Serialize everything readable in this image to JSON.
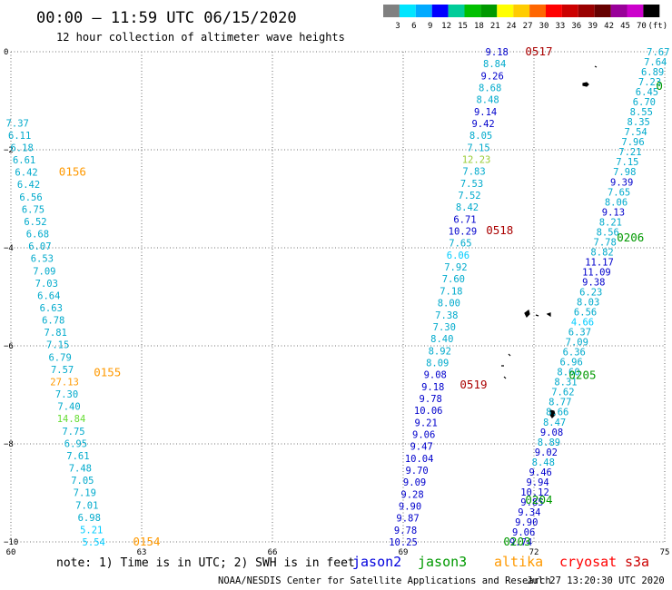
{
  "header": {
    "title": "00:00 – 11:59 UTC 06/15/2020",
    "subtitle": "12 hour collection of altimeter wave heights"
  },
  "colorbar": {
    "labels": [
      "3",
      "6",
      "9",
      "12",
      "15",
      "18",
      "21",
      "24",
      "27",
      "30",
      "33",
      "36",
      "39",
      "42",
      "45",
      "70",
      "(ft)"
    ],
    "colors": [
      "#808080",
      "#00e5ff",
      "#00aaff",
      "#0000ff",
      "#00cc99",
      "#00c000",
      "#009900",
      "#ffff00",
      "#ffcc00",
      "#ff6600",
      "#ff0000",
      "#cc0000",
      "#990000",
      "#660000",
      "#990099",
      "#cc00cc",
      "#000000"
    ]
  },
  "footer": {
    "note": "note: 1) Time is in UTC; 2) SWH is in feet",
    "missions": [
      {
        "name": "jason2",
        "color": "#0000dd"
      },
      {
        "name": "jason3",
        "color": "#009900"
      },
      {
        "name": "altika",
        "color": "#ff9900"
      },
      {
        "name": "cryosat",
        "color": "#ff0000"
      },
      {
        "name": "s3a",
        "color": "#cc0000"
      }
    ],
    "credit": "NOAA/NESDIS Center for Satellite Applications and Research",
    "timestamp": "Jul 27 13:20:30 UTC 2020"
  },
  "chart_data": {
    "type": "scatter",
    "title": "00:00 – 11:59 UTC 06/15/2020",
    "subtitle": "12 hour collection of altimeter wave heights",
    "xlim": [
      60,
      75
    ],
    "ylim": [
      -10,
      0
    ],
    "xticks": [
      "60",
      "63",
      "66",
      "69",
      "72",
      "75"
    ],
    "yticks": [
      "0",
      "−2",
      "−4",
      "−6",
      "−8",
      "−10"
    ],
    "grid": true,
    "units": "ft",
    "track_labels": [
      {
        "text": "0517",
        "lon": 71.8,
        "lat": 0.0,
        "color": "#aa0000"
      },
      {
        "text": "0518",
        "lon": 70.9,
        "lat": -3.65,
        "color": "#aa0000"
      },
      {
        "text": "0519",
        "lon": 70.3,
        "lat": -6.8,
        "color": "#aa0000"
      },
      {
        "text": "0156",
        "lon": 61.1,
        "lat": -2.45,
        "color": "#ff9900"
      },
      {
        "text": "0155",
        "lon": 61.9,
        "lat": -6.55,
        "color": "#ff9900"
      },
      {
        "text": "0154",
        "lon": 62.8,
        "lat": -10.0,
        "color": "#ff9900"
      },
      {
        "text": "0206",
        "lon": 73.9,
        "lat": -3.8,
        "color": "#009900"
      },
      {
        "text": "0205",
        "lon": 72.8,
        "lat": -6.6,
        "color": "#009900"
      },
      {
        "text": "0204",
        "lon": 71.8,
        "lat": -9.15,
        "color": "#009900"
      },
      {
        "text": "0203",
        "lon": 71.3,
        "lat": -10.0,
        "color": "#009900"
      },
      {
        "text": "0",
        "lon": 74.8,
        "lat": -0.7,
        "color": "#009900"
      }
    ],
    "tracks": [
      {
        "mission": "altika",
        "start": [
          60.15,
          -1.45
        ],
        "end": [
          61.9,
          -10.0
        ],
        "values": [
          "7.37",
          "6.11",
          "6.18",
          "6.61",
          "6.42",
          "6.42",
          "6.56",
          "6.75",
          "6.52",
          "6.68",
          "6.07",
          "6.53",
          "7.09",
          "7.03",
          "6.64",
          "6.63",
          "6.78",
          "7.81",
          "7.15",
          "6.79",
          "7.57",
          "27.13",
          "7.30",
          "7.40",
          "14.84",
          "7.75",
          "6.95",
          "7.61",
          "7.48",
          "7.05",
          "7.19",
          "7.01",
          "6.98",
          "5.21",
          "5.54"
        ],
        "colors": [
          "#00aacc",
          "#00aacc",
          "#00aacc",
          "#00aacc",
          "#00aacc",
          "#00aacc",
          "#00aacc",
          "#00aacc",
          "#00aacc",
          "#00aacc",
          "#00aacc",
          "#00aacc",
          "#00aacc",
          "#00aacc",
          "#00aacc",
          "#00aacc",
          "#00aacc",
          "#00aacc",
          "#00aacc",
          "#00aacc",
          "#00aacc",
          "#ff9900",
          "#00aacc",
          "#00aacc",
          "#66dd33",
          "#00aacc",
          "#00aacc",
          "#00aacc",
          "#00aacc",
          "#00aacc",
          "#00aacc",
          "#00aacc",
          "#00aacc",
          "#00ccff",
          "#00ccff"
        ]
      },
      {
        "mission": "cryosat",
        "start": [
          71.15,
          0.0
        ],
        "end": [
          69.0,
          -10.0
        ],
        "values": [
          "9.18",
          "8.84",
          "9.26",
          "8.68",
          "8.48",
          "9.14",
          "9.42",
          "8.05",
          "7.15",
          "12.23",
          "7.83",
          "7.53",
          "7.52",
          "8.42",
          "6.71",
          "10.29",
          "7.65",
          "6.06",
          "7.92",
          "7.60",
          "7.18",
          "8.00",
          "7.38",
          "7.30",
          "8.40",
          "8.92",
          "8.09",
          "9.08",
          "9.18",
          "9.78",
          "10.06",
          "9.21",
          "9.06",
          "9.47",
          "10.04",
          "9.70",
          "9.09",
          "9.28",
          "9.90",
          "9.87",
          "9.78",
          "10.25"
        ],
        "colors": [
          "#0000cc",
          "#00aacc",
          "#0000cc",
          "#00aacc",
          "#00aacc",
          "#0000cc",
          "#0000cc",
          "#00aacc",
          "#00aacc",
          "#99cc33",
          "#00aacc",
          "#00aacc",
          "#00aacc",
          "#00aacc",
          "#0000cc",
          "#0000cc",
          "#00aacc",
          "#00ccff",
          "#00aacc",
          "#00aacc",
          "#00aacc",
          "#00aacc",
          "#00aacc",
          "#00aacc",
          "#00aacc",
          "#00aacc",
          "#00aacc",
          "#0000cc",
          "#0000cc",
          "#0000cc",
          "#0000cc",
          "#0000cc",
          "#0000cc",
          "#0000cc",
          "#0000cc",
          "#0000cc",
          "#0000cc",
          "#0000cc",
          "#0000cc",
          "#0000cc",
          "#0000cc",
          "#0000cc"
        ]
      },
      {
        "mission": "jason3",
        "start": [
          74.85,
          0.0
        ],
        "end": [
          71.7,
          -10.0
        ],
        "values": [
          "7.67",
          "7.64",
          "6.89",
          "7.23",
          "6.45",
          "6.70",
          "8.55",
          "8.35",
          "7.54",
          "7.96",
          "7.21",
          "7.15",
          "7.98",
          "9.39",
          "7.65",
          "8.06",
          "9.13",
          "8.21",
          "8.56",
          "7.78",
          "8.82",
          "11.17",
          "11.09",
          "9.38",
          "6.23",
          "8.03",
          "6.56",
          "4.66",
          "6.37",
          "7.09",
          "6.36",
          "6.96",
          "8.60",
          "8.31",
          "7.62",
          "8.77",
          "8.66",
          "8.47",
          "9.08",
          "8.89",
          "9.02",
          "8.48",
          "9.46",
          "9.94",
          "10.12",
          "9.85",
          "9.34",
          "9.90",
          "9.06",
          "9.74"
        ],
        "colors": [
          "#00aacc",
          "#00aacc",
          "#00aacc",
          "#00aacc",
          "#00aacc",
          "#00aacc",
          "#00aacc",
          "#00aacc",
          "#00aacc",
          "#00aacc",
          "#00aacc",
          "#00aacc",
          "#00aacc",
          "#0000cc",
          "#00aacc",
          "#00aacc",
          "#0000cc",
          "#00aacc",
          "#00aacc",
          "#00aacc",
          "#00aacc",
          "#0000cc",
          "#0000cc",
          "#0000cc",
          "#00aacc",
          "#00aacc",
          "#00aacc",
          "#00ccff",
          "#00aacc",
          "#00aacc",
          "#00aacc",
          "#00aacc",
          "#00aacc",
          "#00aacc",
          "#00aacc",
          "#00aacc",
          "#00aacc",
          "#00aacc",
          "#0000cc",
          "#00aacc",
          "#0000cc",
          "#00aacc",
          "#0000cc",
          "#0000cc",
          "#0000cc",
          "#0000cc",
          "#0000cc",
          "#0000cc",
          "#0000cc",
          "#0000cc"
        ]
      }
    ]
  }
}
